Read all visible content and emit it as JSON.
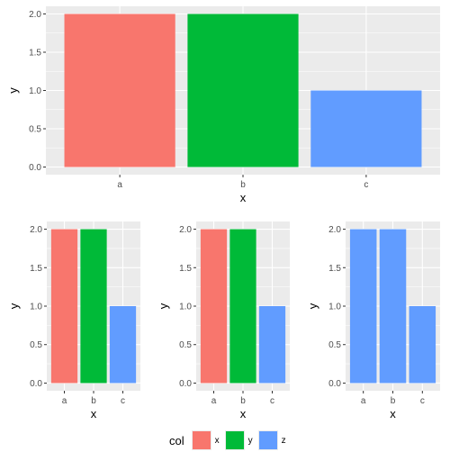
{
  "chart_data": [
    {
      "type": "bar",
      "xlabel": "x",
      "ylabel": "y",
      "categories": [
        "a",
        "b",
        "c"
      ],
      "values": [
        2.0,
        2.0,
        1.0
      ],
      "colors": [
        "#F8766D",
        "#00BA38",
        "#619CFF"
      ],
      "ylim": [
        0,
        2.0
      ],
      "yticks": [
        "0.0",
        "0.5",
        "1.0",
        "1.5",
        "2.0"
      ],
      "grid": true,
      "background": "#EBEBEB"
    },
    {
      "type": "bar",
      "xlabel": "x",
      "ylabel": "y",
      "categories": [
        "a",
        "b",
        "c"
      ],
      "values": [
        2.0,
        2.0,
        1.0
      ],
      "colors": [
        "#F8766D",
        "#00BA38",
        "#619CFF"
      ],
      "ylim": [
        0,
        2.0
      ],
      "yticks": [
        "0.0",
        "0.5",
        "1.0",
        "1.5",
        "2.0"
      ],
      "grid": true,
      "background": "#EBEBEB"
    },
    {
      "type": "bar",
      "xlabel": "x",
      "ylabel": "y",
      "categories": [
        "a",
        "b",
        "c"
      ],
      "values": [
        2.0,
        2.0,
        1.0
      ],
      "colors": [
        "#F8766D",
        "#00BA38",
        "#619CFF"
      ],
      "ylim": [
        0,
        2.0
      ],
      "yticks": [
        "0.0",
        "0.5",
        "1.0",
        "1.5",
        "2.0"
      ],
      "grid": true,
      "background": "#EBEBEB"
    },
    {
      "type": "bar",
      "xlabel": "x",
      "ylabel": "y",
      "categories": [
        "a",
        "b",
        "c"
      ],
      "values": [
        2.0,
        2.0,
        1.0
      ],
      "colors": [
        "#619CFF",
        "#619CFF",
        "#619CFF"
      ],
      "ylim": [
        0,
        2.0
      ],
      "yticks": [
        "0.0",
        "0.5",
        "1.0",
        "1.5",
        "2.0"
      ],
      "grid": true,
      "background": "#EBEBEB"
    }
  ],
  "legend": {
    "title": "col",
    "placement": "bottom",
    "items": [
      {
        "label": "x",
        "color": "#F8766D"
      },
      {
        "label": "y",
        "color": "#00BA38"
      },
      {
        "label": "z",
        "color": "#619CFF"
      }
    ]
  }
}
